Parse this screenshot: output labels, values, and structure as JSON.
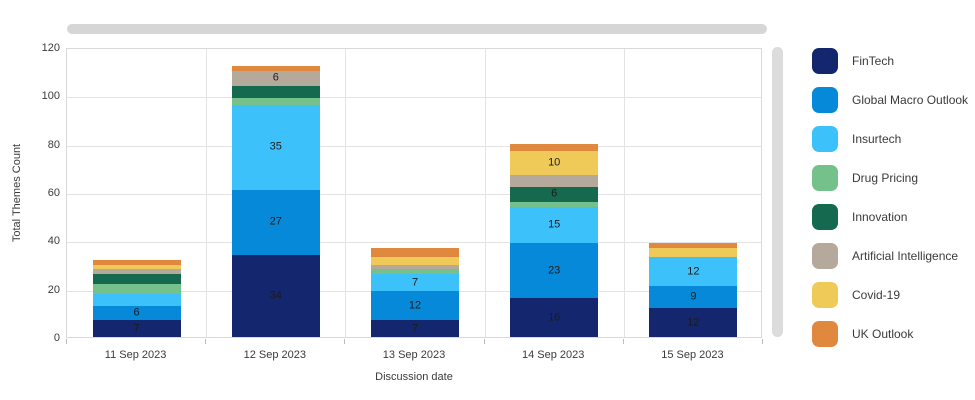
{
  "chart_data": {
    "type": "bar",
    "stacked": true,
    "xlabel": "Discussion date",
    "ylabel": "Total Themes Count",
    "ylim": [
      0,
      120
    ],
    "y_ticks": [
      0,
      20,
      40,
      60,
      80,
      100,
      120
    ],
    "grid": true,
    "legend_position": "right",
    "categories": [
      "11 Sep 2023",
      "12 Sep 2023",
      "13 Sep 2023",
      "14 Sep 2023",
      "15 Sep 2023"
    ],
    "series": [
      {
        "name": "FinTech",
        "color": "#14266D",
        "values": [
          7,
          34,
          7,
          16,
          12
        ]
      },
      {
        "name": "Global Macro Outlook",
        "color": "#0689D8",
        "values": [
          6,
          27,
          12,
          23,
          9
        ]
      },
      {
        "name": "Insurtech",
        "color": "#3DC1FB",
        "values": [
          5,
          35,
          7,
          15,
          12
        ]
      },
      {
        "name": "Drug Pricing",
        "color": "#74C18C",
        "values": [
          4,
          3,
          2,
          2,
          0
        ]
      },
      {
        "name": "Innovation",
        "color": "#15694E",
        "values": [
          4,
          5,
          0,
          6,
          0
        ]
      },
      {
        "name": "Artificial Intelligence",
        "color": "#B5A99B",
        "values": [
          2,
          6,
          2,
          5,
          0
        ]
      },
      {
        "name": "Covid-19",
        "color": "#F0CA58",
        "values": [
          2,
          0,
          3,
          10,
          4
        ]
      },
      {
        "name": "UK Outlook",
        "color": "#E0883E",
        "values": [
          2,
          2,
          4,
          3,
          2
        ]
      }
    ],
    "bar_totals": [
      32,
      112,
      37,
      80,
      39
    ],
    "value_label_min": 6
  },
  "scrollbars": {
    "horizontal": true,
    "vertical": true
  },
  "colors": {
    "grid": "#E3E3E3",
    "plot_border": "#D9D9D9",
    "axis_text": "#3A3A3A",
    "value_label": "#1C1C1C",
    "scrollbar": "#D6D6D6"
  }
}
